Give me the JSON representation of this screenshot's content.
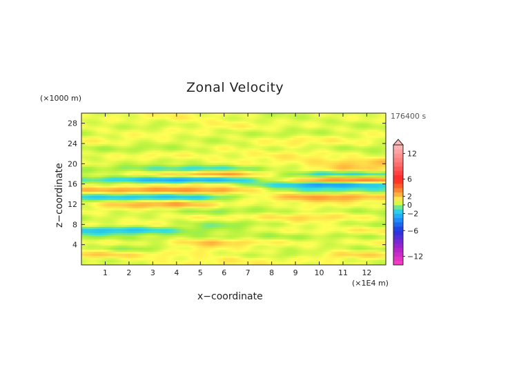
{
  "chart_data": {
    "type": "heatmap",
    "title": "Zonal Velocity",
    "xlabel": "x−coordinate",
    "ylabel": "z−coordinate",
    "x_unit": "(×1E4 m)",
    "y_unit": "(×1000 m)",
    "time_label": "176400 s",
    "xlim": [
      0,
      12.8
    ],
    "ylim": [
      0,
      30
    ],
    "x_ticks": [
      1,
      2,
      3,
      4,
      5,
      6,
      7,
      8,
      9,
      10,
      11,
      12
    ],
    "y_ticks": [
      4,
      8,
      12,
      16,
      20,
      24,
      28
    ],
    "colorbar": {
      "range": [
        -14,
        14
      ],
      "tick_labels": [
        "12",
        "6",
        "2",
        "0",
        "−2",
        "−6",
        "−12"
      ],
      "tick_values": [
        12,
        6,
        2,
        0,
        -2,
        -6,
        -12
      ],
      "colors": [
        {
          "v": -14,
          "c": "#ff3fbf"
        },
        {
          "v": -10,
          "c": "#aa22cc"
        },
        {
          "v": -6,
          "c": "#2233dd"
        },
        {
          "v": -3,
          "c": "#1c9cff"
        },
        {
          "v": -1,
          "c": "#33e0dd"
        },
        {
          "v": 0,
          "c": "#aaf03c"
        },
        {
          "v": 1,
          "c": "#ffff55"
        },
        {
          "v": 3,
          "c": "#ff9933"
        },
        {
          "v": 6,
          "c": "#ff2222"
        },
        {
          "v": 10,
          "c": "#ff7777"
        },
        {
          "v": 14,
          "c": "#ffbbbb"
        }
      ]
    },
    "z_bands": [
      {
        "z": 0.8,
        "x": [
          0,
          6,
          13
        ],
        "v": [
          0.4,
          1.3,
          0.6
        ]
      },
      {
        "z": 2.0,
        "x": [
          0,
          3.5,
          6,
          9,
          11,
          13
        ],
        "v": [
          2.1,
          1.2,
          0.8,
          0.2,
          1.8,
          1.6
        ]
      },
      {
        "z": 3.2,
        "x": [
          0,
          2.5,
          5,
          7,
          10,
          13
        ],
        "v": [
          0.6,
          -0.2,
          1.4,
          0.8,
          0.5,
          0.3
        ]
      },
      {
        "z": 4.4,
        "x": [
          0,
          3,
          5.5,
          8,
          11,
          13
        ],
        "v": [
          1.0,
          0.6,
          2.3,
          1.1,
          0.7,
          1.2
        ]
      },
      {
        "z": 5.6,
        "x": [
          0,
          2,
          5,
          8,
          13
        ],
        "v": [
          -0.3,
          0.2,
          0.3,
          0.1,
          0.4
        ]
      },
      {
        "z": 6.8,
        "x": [
          0,
          2,
          4,
          7,
          10,
          13
        ],
        "v": [
          -1.6,
          -1.9,
          -0.5,
          0.6,
          1.0,
          1.4
        ]
      },
      {
        "z": 8.0,
        "x": [
          0,
          3,
          6,
          9,
          13
        ],
        "v": [
          0.8,
          1.0,
          -0.4,
          0.9,
          0.2
        ]
      },
      {
        "z": 9.4,
        "x": [
          0,
          4,
          7,
          10,
          13
        ],
        "v": [
          0.3,
          0.9,
          1.2,
          1.8,
          0.5
        ]
      },
      {
        "z": 10.6,
        "x": [
          0,
          3,
          6,
          9,
          13
        ],
        "v": [
          1.0,
          0.5,
          -0.2,
          0.6,
          0.2
        ]
      },
      {
        "z": 12.0,
        "x": [
          0,
          2,
          4,
          6,
          8,
          10,
          13
        ],
        "v": [
          0.6,
          2.4,
          2.8,
          1.2,
          0.5,
          1.3,
          0.6
        ]
      },
      {
        "z": 13.4,
        "x": [
          0,
          3,
          5,
          7,
          9,
          11,
          13
        ],
        "v": [
          -1.2,
          -1.8,
          -1.4,
          0.6,
          2.6,
          2.9,
          1.6
        ]
      },
      {
        "z": 14.8,
        "x": [
          0,
          2,
          4,
          6,
          8,
          10,
          13
        ],
        "v": [
          2.2,
          2.9,
          3.1,
          2.8,
          0.4,
          -0.8,
          -0.4
        ]
      },
      {
        "z": 15.8,
        "x": [
          0,
          2,
          5,
          8,
          10,
          13
        ],
        "v": [
          0.8,
          0.6,
          1.4,
          -0.8,
          -3.2,
          -1.2
        ]
      },
      {
        "z": 16.8,
        "x": [
          0,
          2,
          4,
          6,
          8,
          10,
          13
        ],
        "v": [
          -0.6,
          -1.5,
          -2.8,
          -2.0,
          0.2,
          3.0,
          3.4
        ]
      },
      {
        "z": 17.9,
        "x": [
          0,
          3,
          6,
          8,
          10,
          13
        ],
        "v": [
          0.4,
          1.2,
          3.0,
          1.0,
          -1.4,
          -0.6
        ]
      },
      {
        "z": 19.0,
        "x": [
          0,
          3,
          5,
          7,
          9,
          11,
          13
        ],
        "v": [
          0.2,
          -0.4,
          -1.2,
          -0.2,
          0.6,
          2.2,
          1.4
        ]
      },
      {
        "z": 20.2,
        "x": [
          0,
          3,
          6,
          9,
          13
        ],
        "v": [
          1.0,
          0.3,
          0.9,
          1.1,
          2.4
        ]
      },
      {
        "z": 21.6,
        "x": [
          0,
          3,
          6,
          9,
          13
        ],
        "v": [
          0.5,
          1.2,
          0.8,
          1.4,
          0.5
        ]
      },
      {
        "z": 23.0,
        "x": [
          0,
          3,
          6,
          9,
          13
        ],
        "v": [
          0.3,
          0.1,
          0.9,
          0.6,
          0.2
        ]
      },
      {
        "z": 24.5,
        "x": [
          0,
          3,
          6,
          9,
          13
        ],
        "v": [
          1.2,
          0.7,
          0.4,
          1.4,
          0.8
        ]
      },
      {
        "z": 26.0,
        "x": [
          0,
          3,
          6,
          9,
          13
        ],
        "v": [
          0.4,
          1.1,
          0.6,
          0.2,
          1.0
        ]
      },
      {
        "z": 27.5,
        "x": [
          0,
          3,
          6,
          9,
          13
        ],
        "v": [
          0.9,
          0.3,
          1.2,
          0.8,
          0.3
        ]
      },
      {
        "z": 29.2,
        "x": [
          0,
          4,
          8,
          13
        ],
        "v": [
          0.6,
          1.2,
          0.4,
          0.9
        ]
      }
    ]
  }
}
